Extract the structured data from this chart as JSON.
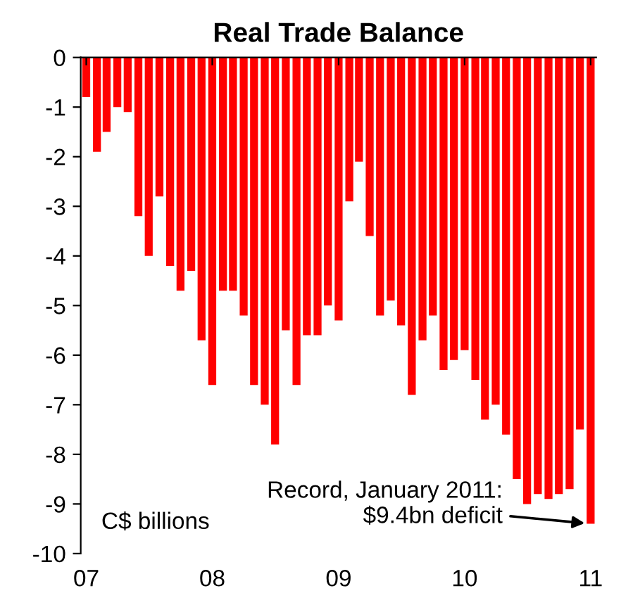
{
  "chart_data": {
    "type": "bar",
    "title": "Real Trade Balance",
    "color": "#ff0000",
    "x": [
      "2007-01",
      "2007-02",
      "2007-03",
      "2007-04",
      "2007-05",
      "2007-06",
      "2007-07",
      "2007-08",
      "2007-09",
      "2007-10",
      "2007-11",
      "2007-12",
      "2008-01",
      "2008-02",
      "2008-03",
      "2008-04",
      "2008-05",
      "2008-06",
      "2008-07",
      "2008-08",
      "2008-09",
      "2008-10",
      "2008-11",
      "2008-12",
      "2009-01",
      "2009-02",
      "2009-03",
      "2009-04",
      "2009-05",
      "2009-06",
      "2009-07",
      "2009-08",
      "2009-09",
      "2009-10",
      "2009-11",
      "2009-12",
      "2010-01",
      "2010-02",
      "2010-03",
      "2010-04",
      "2010-05",
      "2010-06",
      "2010-07",
      "2010-08",
      "2010-09",
      "2010-10",
      "2010-11",
      "2010-12",
      "2011-01"
    ],
    "values": [
      -0.8,
      -1.9,
      -1.5,
      -1.0,
      -1.1,
      -3.2,
      -4.0,
      -2.8,
      -4.2,
      -4.7,
      -4.3,
      -5.7,
      -6.6,
      -4.7,
      -4.7,
      -5.2,
      -6.6,
      -7.0,
      -7.8,
      -5.5,
      -6.6,
      -5.6,
      -5.6,
      -5.0,
      -5.3,
      -2.9,
      -2.1,
      -3.6,
      -5.2,
      -4.9,
      -5.4,
      -6.8,
      -5.7,
      -5.2,
      -6.3,
      -6.1,
      -5.9,
      -6.5,
      -7.3,
      -7.0,
      -7.6,
      -8.5,
      -9.0,
      -8.8,
      -8.9,
      -8.8,
      -8.7,
      -7.5,
      -9.4
    ],
    "xlim": [
      "2006-12-16",
      "2011-01-17"
    ],
    "xticks": [
      {
        "value": "2007-01",
        "label": "07"
      },
      {
        "value": "2008-01",
        "label": "08"
      },
      {
        "value": "2009-01",
        "label": "09"
      },
      {
        "value": "2010-01",
        "label": "10"
      },
      {
        "value": "2011-01",
        "label": "11"
      }
    ],
    "ylim": [
      -10,
      0
    ],
    "yticks": [
      {
        "value": 0,
        "label": "0"
      },
      {
        "value": -1,
        "label": "-1"
      },
      {
        "value": -2,
        "label": "-2"
      },
      {
        "value": -3,
        "label": "-3"
      },
      {
        "value": -4,
        "label": "-4"
      },
      {
        "value": -5,
        "label": "-5"
      },
      {
        "value": -6,
        "label": "-6"
      },
      {
        "value": -7,
        "label": "-7"
      },
      {
        "value": -8,
        "label": "-8"
      },
      {
        "value": -9,
        "label": "-9"
      },
      {
        "value": -10,
        "label": "-10"
      }
    ],
    "grid": false,
    "legend": false,
    "annotations": [
      "C$ billions",
      {
        "text": "Record, January 2011:\n$9.4bn deficit",
        "x": "2011-01",
        "y": -9.4
      }
    ]
  }
}
